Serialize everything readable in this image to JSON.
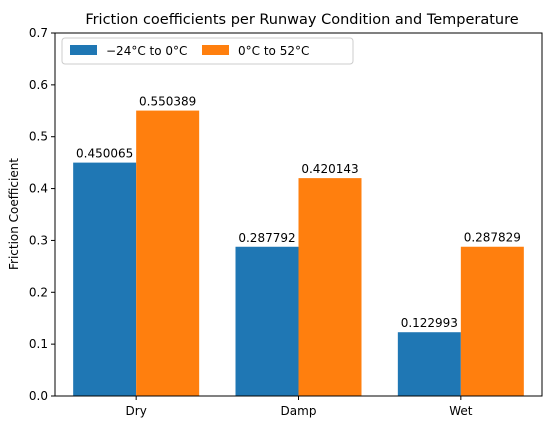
{
  "chart_data": {
    "type": "bar",
    "title": "Friction coefficients per Runway Condition and Temperature",
    "xlabel": "",
    "ylabel": "Friction Coefficient",
    "categories": [
      "Dry",
      "Damp",
      "Wet"
    ],
    "series": [
      {
        "name": "−24°C to 0°C",
        "values": [
          0.450065,
          0.287792,
          0.122993
        ],
        "color": "#1f77b4"
      },
      {
        "name": "0°C to 52°C",
        "values": [
          0.550389,
          0.420143,
          0.287829
        ],
        "color": "#ff7f0e"
      }
    ],
    "data_labels": [
      [
        "0.450065",
        "0.287792",
        "0.122993"
      ],
      [
        "0.550389",
        "0.420143",
        "0.287829"
      ]
    ],
    "ylim": [
      0,
      0.7
    ],
    "yticks": [
      "0.0",
      "0.1",
      "0.2",
      "0.3",
      "0.4",
      "0.5",
      "0.6",
      "0.7"
    ],
    "grid": false,
    "legend_position": "top-left"
  }
}
